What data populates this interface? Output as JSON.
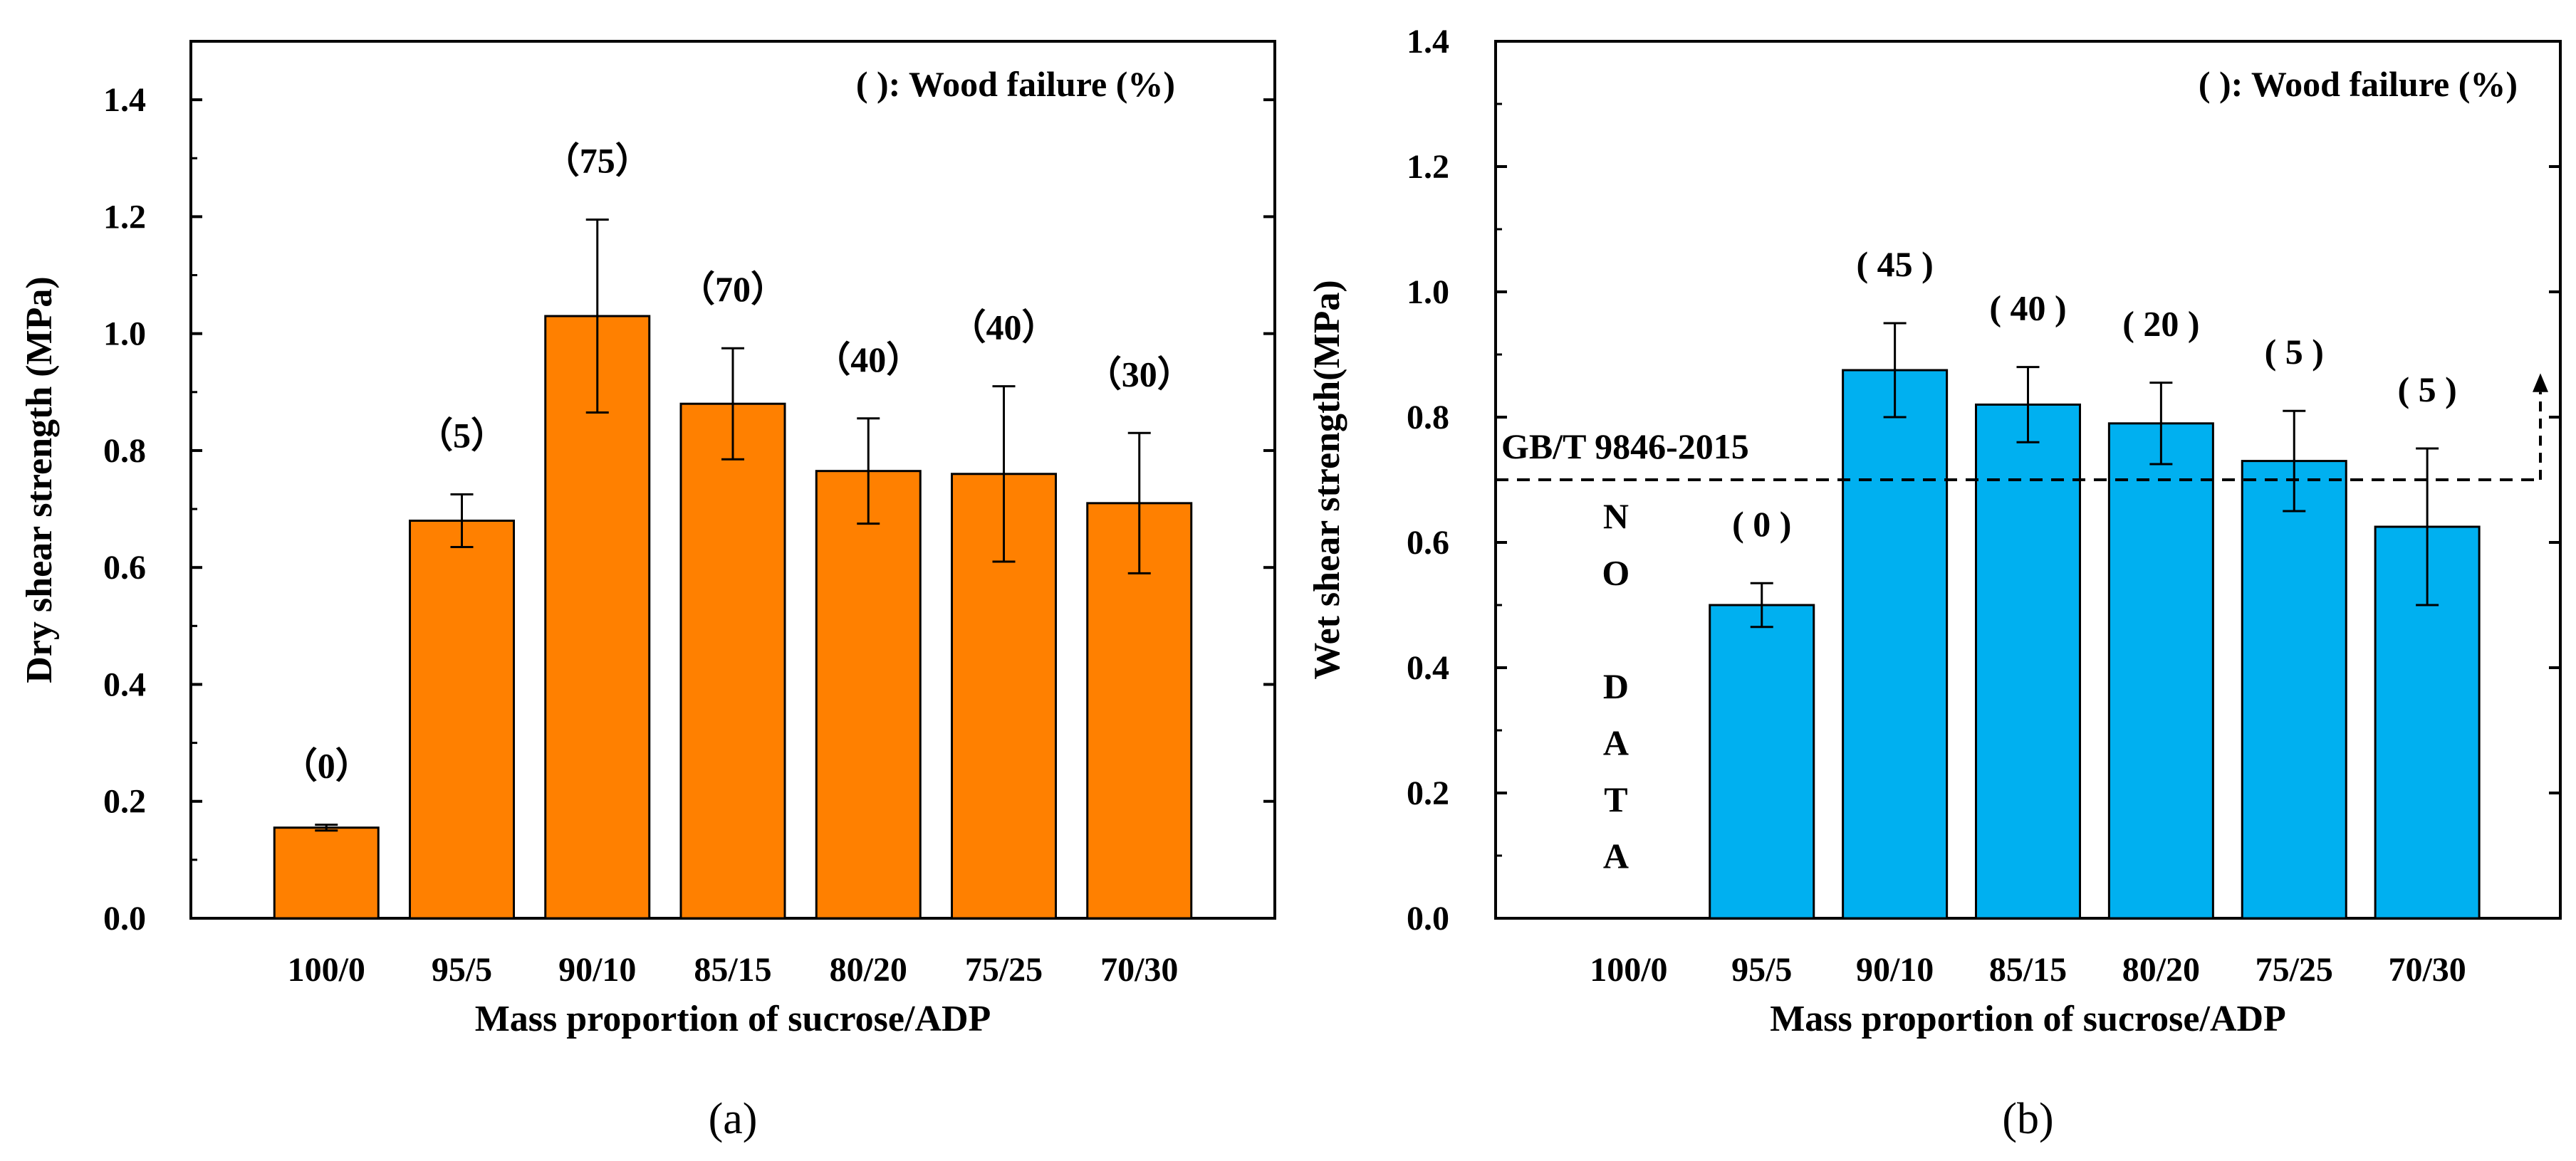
{
  "chart_data": [
    {
      "type": "bar",
      "panel_label": "(a)",
      "note": "(   ): Wood failure (%)",
      "title": "",
      "xlabel": "Mass proportion of sucrose/ADP",
      "ylabel": "Dry shear strength (MPa)",
      "ylim": [
        0,
        1.5
      ],
      "yticks": [
        "0.0",
        "0.2",
        "0.4",
        "0.6",
        "0.8",
        "1.0",
        "1.2",
        "1.4"
      ],
      "categories": [
        "100/0",
        "95/5",
        "90/10",
        "85/15",
        "80/20",
        "75/25",
        "70/30"
      ],
      "values": [
        0.155,
        0.68,
        1.03,
        0.88,
        0.765,
        0.76,
        0.71
      ],
      "errors": [
        0.005,
        0.045,
        0.165,
        0.095,
        0.09,
        0.15,
        0.12
      ],
      "wood_failure_labels": [
        "（0）",
        "（5）",
        "（75）",
        "（70）",
        "（40）",
        "（40）",
        "（30）"
      ],
      "color": "#ff8000"
    },
    {
      "type": "bar",
      "panel_label": "(b)",
      "note": "(   ):  Wood failure (%)",
      "title": "",
      "xlabel": "Mass proportion of sucrose/ADP",
      "ylabel": "Wet shear strength(MPa)",
      "ylim": [
        0,
        1.4
      ],
      "yticks": [
        "0.0",
        "0.2",
        "0.4",
        "0.6",
        "0.8",
        "1.0",
        "1.2",
        "1.4"
      ],
      "categories": [
        "100/0",
        "95/5",
        "90/10",
        "85/15",
        "80/20",
        "75/25",
        "70/30"
      ],
      "values": [
        null,
        0.5,
        0.875,
        0.82,
        0.79,
        0.73,
        0.625
      ],
      "errors": [
        null,
        0.035,
        0.075,
        0.06,
        0.065,
        0.08,
        0.125
      ],
      "wood_failure_labels": [
        "",
        "( 0 )",
        "( 45 )",
        "( 40 )",
        "( 20 )",
        "( 5 )",
        "( 5 )"
      ],
      "no_data_letters": [
        "N",
        "O",
        "",
        "D",
        "A",
        "T",
        "A"
      ],
      "reference_line": {
        "label": "GB/T 9846-2015",
        "value": 0.7
      },
      "color": "#00b0f0"
    }
  ]
}
